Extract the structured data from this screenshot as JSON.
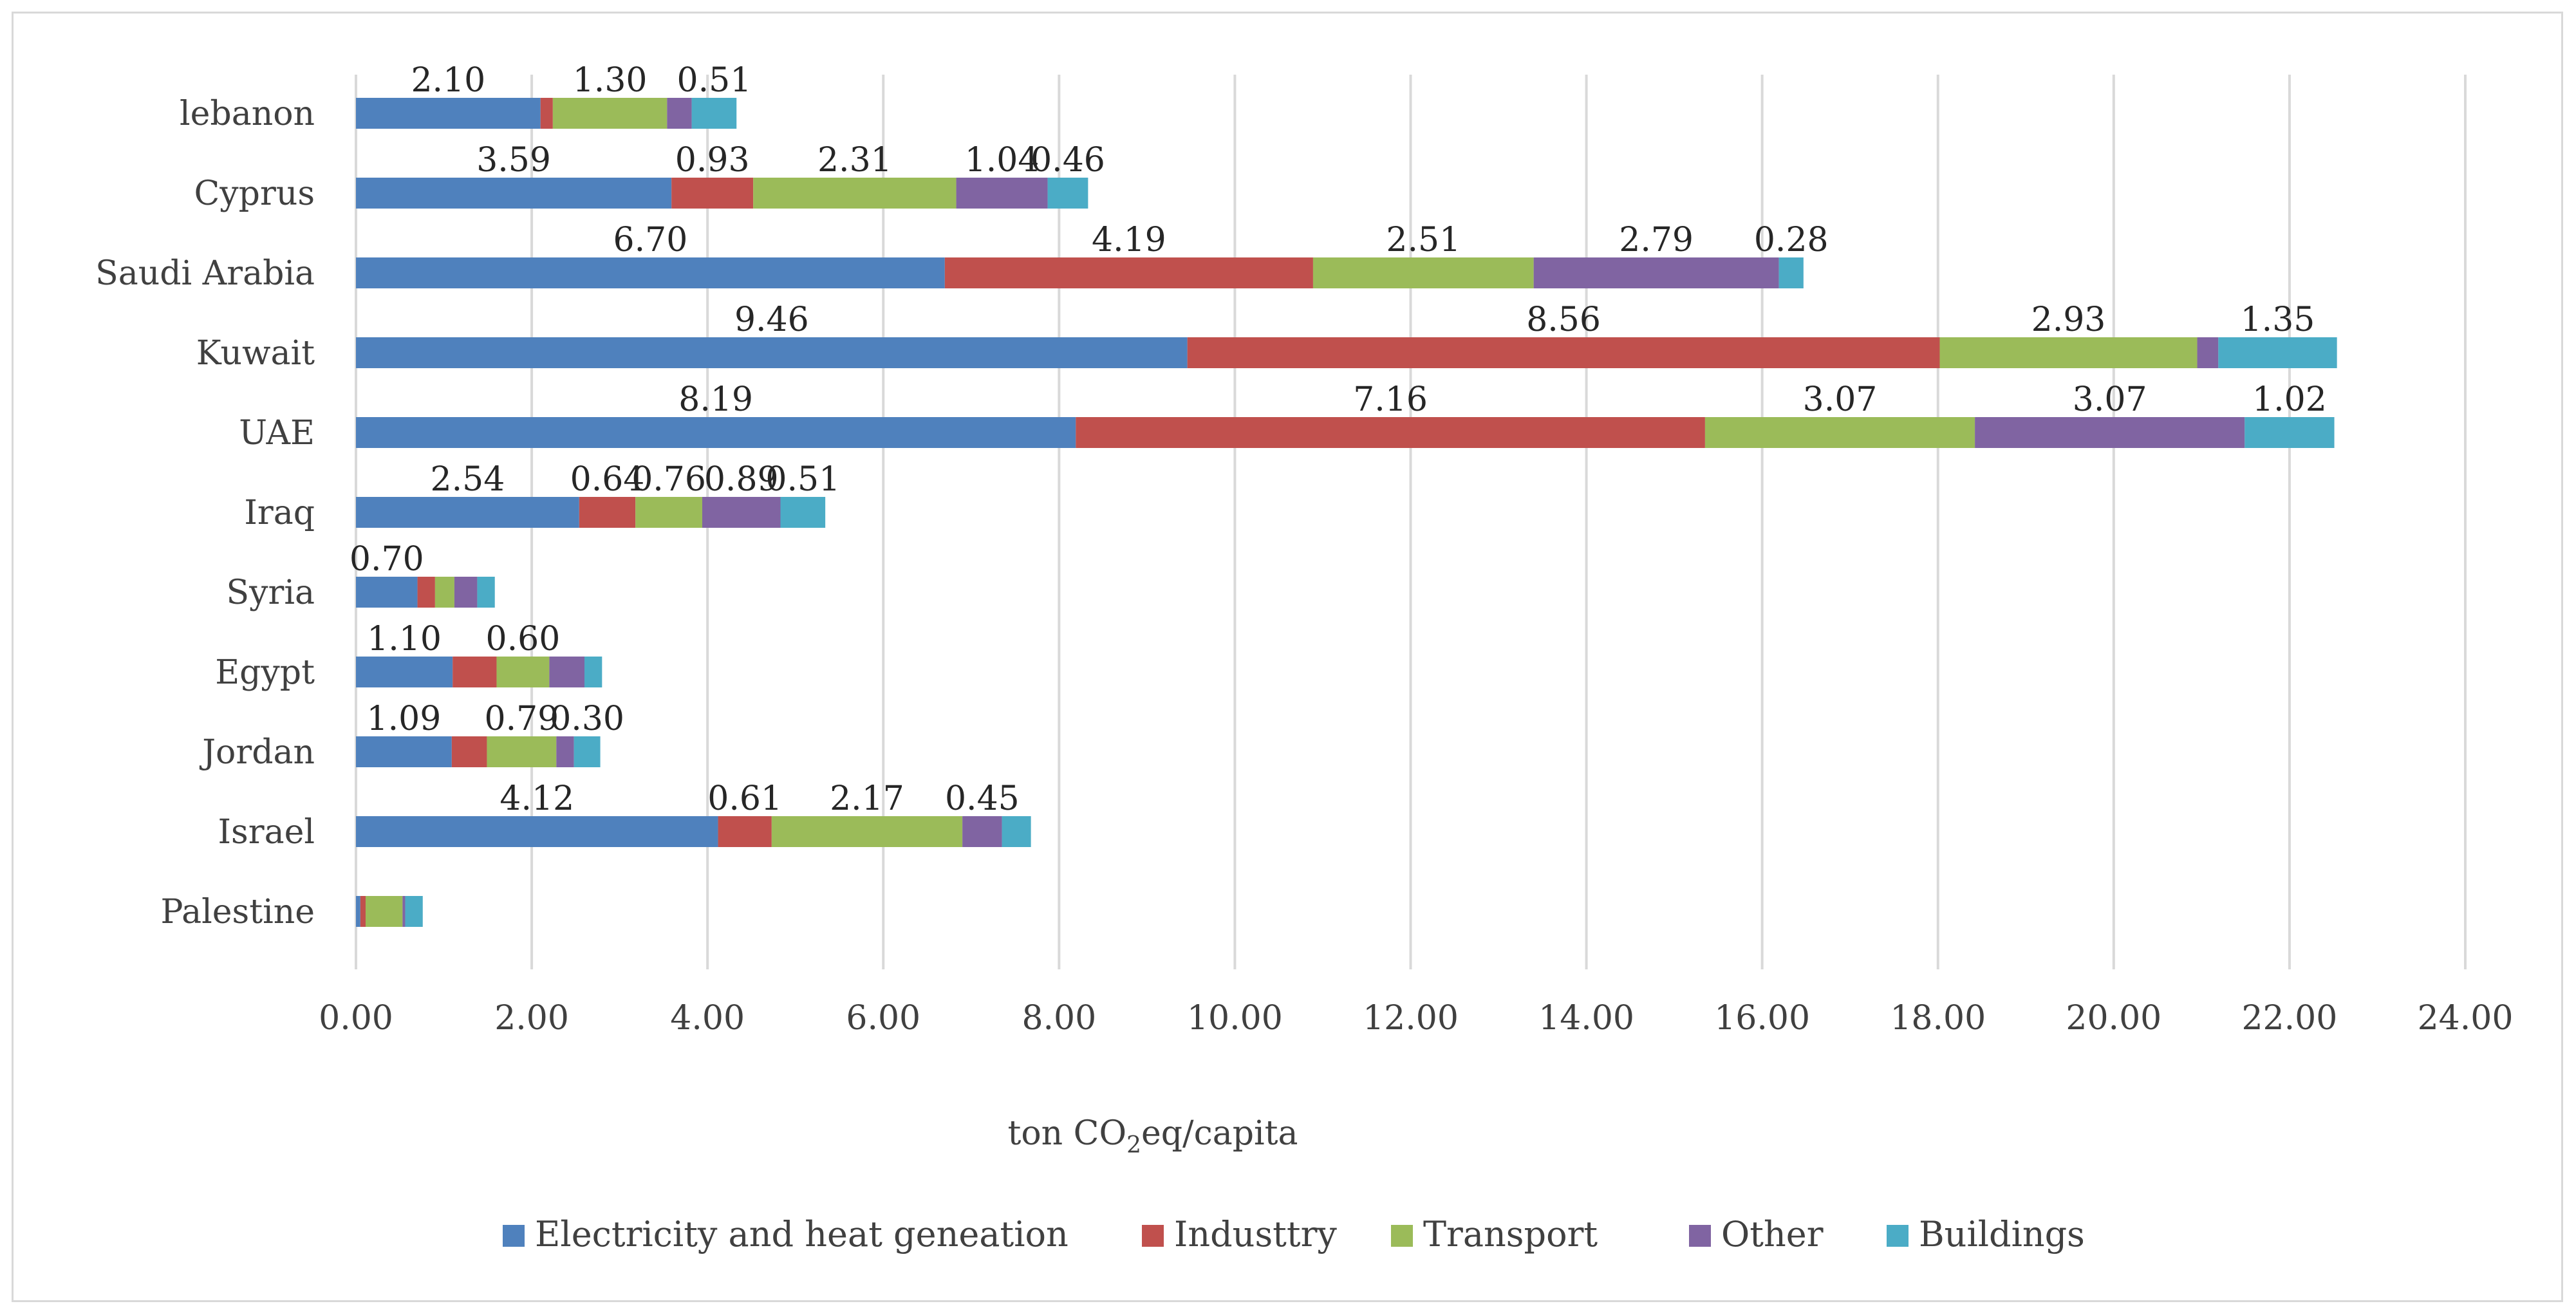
{
  "chart_data": {
    "type": "bar",
    "orientation": "horizontal",
    "stacked": true,
    "categories": [
      "lebanon",
      "Cyprus",
      "Saudi Arabia",
      "Kuwait",
      "UAE",
      "Iraq",
      "Syria",
      "Egypt",
      "Jordan",
      "Israel",
      "Palestine"
    ],
    "series": [
      {
        "name": "Electricity and heat geneation",
        "color": "#4f81bd",
        "values": [
          2.1,
          3.59,
          6.7,
          9.46,
          8.19,
          2.54,
          0.7,
          1.1,
          1.09,
          4.12,
          0.05
        ],
        "labels": [
          "2.10",
          "3.59",
          "6.70",
          "9.46",
          "8.19",
          "2.54",
          "0.70",
          "1.10",
          "1.09",
          "4.12",
          ""
        ]
      },
      {
        "name": "Industtry",
        "color": "#c0504d",
        "values": [
          0.14,
          0.93,
          4.19,
          8.56,
          7.16,
          0.64,
          0.2,
          0.5,
          0.4,
          0.61,
          0.06
        ],
        "labels": [
          "",
          "0.93",
          "4.19",
          "8.56",
          "7.16",
          "0.64",
          "",
          "",
          "",
          "0.61",
          ""
        ]
      },
      {
        "name": "Transport",
        "color": "#9bbb59",
        "values": [
          1.3,
          2.31,
          2.51,
          2.93,
          3.07,
          0.76,
          0.22,
          0.6,
          0.79,
          2.17,
          0.42
        ],
        "labels": [
          "1.30",
          "2.31",
          "2.51",
          "2.93",
          "3.07",
          "0.76",
          "",
          "0.60",
          "0.79",
          "2.17",
          ""
        ]
      },
      {
        "name": "Other",
        "color": "#8064a2",
        "values": [
          0.28,
          1.04,
          2.79,
          0.24,
          3.07,
          0.89,
          0.26,
          0.4,
          0.2,
          0.45,
          0.03
        ],
        "labels": [
          "",
          "1.04",
          "2.79",
          "",
          "3.07",
          "0.89",
          "",
          "",
          "",
          "0.45",
          ""
        ]
      },
      {
        "name": "Buildings",
        "color": "#4bacc6",
        "values": [
          0.51,
          0.46,
          0.28,
          1.35,
          1.02,
          0.51,
          0.2,
          0.2,
          0.3,
          0.33,
          0.2
        ],
        "labels": [
          "0.51",
          "0.46",
          "0.28",
          "1.35",
          "1.02",
          "0.51",
          "",
          "",
          "0.30",
          "",
          ""
        ]
      }
    ],
    "xlim": [
      0,
      24
    ],
    "xticks": [
      "0.00",
      "2.00",
      "4.00",
      "6.00",
      "8.00",
      "10.00",
      "12.00",
      "14.00",
      "16.00",
      "18.00",
      "20.00",
      "22.00",
      "24.00"
    ],
    "xlabel": {
      "prefix": "ton CO",
      "subscript": "2",
      "suffix": "eq/capita"
    },
    "grid": "vertical",
    "legend_position": "bottom"
  }
}
